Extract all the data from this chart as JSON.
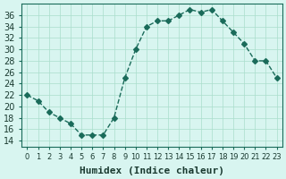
{
  "x": [
    0,
    1,
    2,
    3,
    4,
    5,
    6,
    7,
    8,
    9,
    10,
    11,
    12,
    13,
    14,
    15,
    16,
    17,
    18,
    19,
    20,
    21,
    22,
    23
  ],
  "y": [
    22,
    21,
    19,
    18,
    17,
    15,
    15,
    15,
    18,
    25,
    30,
    34,
    35,
    35,
    36,
    37,
    36.5,
    37,
    35,
    33,
    31,
    28,
    28,
    25
  ],
  "line_color": "#1a6b5a",
  "marker": "D",
  "marker_size": 3,
  "bg_color": "#d8f5f0",
  "grid_color": "#aaddcc",
  "xlabel": "Humidex (Indice chaleur)",
  "xlim": [
    -0.5,
    23.5
  ],
  "ylim": [
    13,
    38
  ],
  "yticks": [
    14,
    16,
    18,
    20,
    22,
    24,
    26,
    28,
    30,
    32,
    34,
    36
  ],
  "label_fontsize": 8,
  "tick_fontsize": 7
}
